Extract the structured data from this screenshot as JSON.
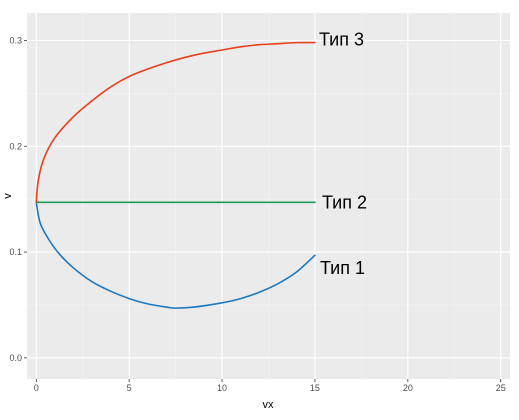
{
  "chart_data": {
    "type": "line",
    "xlabel": "vx",
    "ylabel": "v",
    "xlim": [
      -0.5,
      25.5
    ],
    "ylim": [
      -0.02,
      0.326
    ],
    "x_ticks": [
      0,
      5,
      10,
      15,
      20,
      25
    ],
    "y_ticks": [
      0.0,
      0.1,
      0.2,
      0.3
    ],
    "x_tick_labels": [
      "0",
      "5",
      "10",
      "15",
      "20",
      "25"
    ],
    "y_tick_labels": [
      "0.0",
      "0.1",
      "0.2",
      "0.3"
    ],
    "grid": true,
    "legend": "none",
    "background": "#ebebeb",
    "series": [
      {
        "name": "Тип 1",
        "color": "#1c78c0",
        "x": [
          0,
          0.2,
          0.6,
          1.2,
          2.0,
          3.0,
          4.0,
          5.0,
          6.0,
          7.0,
          7.5,
          8.5,
          10.0,
          11.0,
          12.0,
          13.0,
          14.0,
          15.0
        ],
        "y": [
          0.147,
          0.128,
          0.114,
          0.099,
          0.085,
          0.072,
          0.063,
          0.056,
          0.051,
          0.048,
          0.047,
          0.048,
          0.052,
          0.056,
          0.062,
          0.07,
          0.081,
          0.097
        ]
      },
      {
        "name": "Тип 2",
        "color": "#1e9a5a",
        "x": [
          0,
          15
        ],
        "y": [
          0.147,
          0.147
        ]
      },
      {
        "name": "Тип 3",
        "color": "#e8401a",
        "x": [
          0,
          0.1,
          0.4,
          1.0,
          2.0,
          3.0,
          4.0,
          5.0,
          6.0,
          7.0,
          8.0,
          9.0,
          10.0,
          11.0,
          12.0,
          13.0,
          14.0,
          15.0
        ],
        "y": [
          0.147,
          0.167,
          0.188,
          0.208,
          0.228,
          0.243,
          0.256,
          0.266,
          0.273,
          0.279,
          0.284,
          0.288,
          0.291,
          0.294,
          0.296,
          0.297,
          0.298,
          0.298
        ]
      }
    ]
  }
}
